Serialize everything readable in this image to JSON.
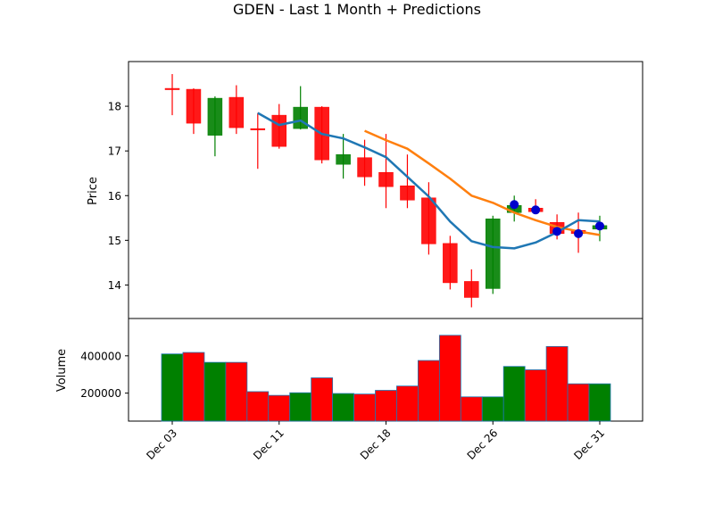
{
  "chart_data": {
    "type": "candlestick",
    "title": "GDEN - Last 1 Month + Predictions",
    "price_ylabel": "Price",
    "volume_ylabel": "Volume",
    "x_ticks": [
      {
        "label": "Dec 03",
        "index": 0
      },
      {
        "label": "Dec 11",
        "index": 5
      },
      {
        "label": "Dec 18",
        "index": 10
      },
      {
        "label": "Dec 26",
        "index": 15
      },
      {
        "label": "Dec 31",
        "index": 20
      }
    ],
    "price_ylim": [
      13.25,
      19.0
    ],
    "price_yticks": [
      "14",
      "15",
      "16",
      "17",
      "18"
    ],
    "volume_ylim": [
      50000,
      600000
    ],
    "volume_yticks": [
      "200000",
      "400000"
    ],
    "colors": {
      "up": "#008000",
      "down": "#ff0000",
      "ma_short": "#1f77b4",
      "ma_long": "#ff7f0e",
      "prediction": "#0000cc"
    },
    "candles": [
      {
        "open": 18.4,
        "high": 18.72,
        "low": 17.8,
        "close": 18.38
      },
      {
        "open": 18.38,
        "high": 18.4,
        "low": 17.38,
        "close": 17.62
      },
      {
        "open": 17.35,
        "high": 18.22,
        "low": 16.88,
        "close": 18.18
      },
      {
        "open": 18.2,
        "high": 18.47,
        "low": 17.38,
        "close": 17.52
      },
      {
        "open": 17.5,
        "high": 17.85,
        "low": 16.6,
        "close": 17.48
      },
      {
        "open": 17.8,
        "high": 18.05,
        "low": 17.05,
        "close": 17.1
      },
      {
        "open": 17.5,
        "high": 18.45,
        "low": 17.48,
        "close": 17.98
      },
      {
        "open": 17.98,
        "high": 18.0,
        "low": 16.72,
        "close": 16.8
      },
      {
        "open": 16.7,
        "high": 17.38,
        "low": 16.38,
        "close": 16.92
      },
      {
        "open": 16.85,
        "high": 17.25,
        "low": 16.22,
        "close": 16.42
      },
      {
        "open": 16.52,
        "high": 17.38,
        "low": 15.72,
        "close": 16.2
      },
      {
        "open": 16.22,
        "high": 16.92,
        "low": 15.72,
        "close": 15.9
      },
      {
        "open": 15.95,
        "high": 16.3,
        "low": 14.68,
        "close": 14.92
      },
      {
        "open": 14.93,
        "high": 15.1,
        "low": 13.9,
        "close": 14.05
      },
      {
        "open": 14.08,
        "high": 14.35,
        "low": 13.5,
        "close": 13.72
      },
      {
        "open": 13.92,
        "high": 15.55,
        "low": 13.8,
        "close": 15.48
      },
      {
        "open": 15.62,
        "high": 16.0,
        "low": 15.42,
        "close": 15.78
      },
      {
        "open": 15.72,
        "high": 15.92,
        "low": 15.62,
        "close": 15.64
      },
      {
        "open": 15.4,
        "high": 15.58,
        "low": 15.02,
        "close": 15.15
      },
      {
        "open": 15.22,
        "high": 15.62,
        "low": 14.72,
        "close": 15.15
      },
      {
        "open": 15.25,
        "high": 15.55,
        "low": 14.98,
        "close": 15.33
      }
    ],
    "ma_short": {
      "start_index": 4,
      "values": [
        17.85,
        17.58,
        17.68,
        17.38,
        17.28,
        17.08,
        16.86,
        16.42,
        15.98,
        15.42,
        14.98,
        14.85,
        14.82,
        14.95,
        15.18,
        15.45,
        15.42
      ]
    },
    "ma_long": {
      "start_index": 9,
      "values": [
        17.45,
        17.24,
        17.05,
        16.72,
        16.38,
        16.0,
        15.84,
        15.62,
        15.45,
        15.3,
        15.2,
        15.12
      ]
    },
    "predictions": {
      "start_index": 16,
      "values": [
        15.8,
        15.68,
        15.2,
        15.15,
        15.32
      ]
    },
    "volume": [
      {
        "value": 410000,
        "dir": "up"
      },
      {
        "value": 418000,
        "dir": "down"
      },
      {
        "value": 365000,
        "dir": "up"
      },
      {
        "value": 365000,
        "dir": "down"
      },
      {
        "value": 208000,
        "dir": "down"
      },
      {
        "value": 188000,
        "dir": "down"
      },
      {
        "value": 202000,
        "dir": "up"
      },
      {
        "value": 282000,
        "dir": "down"
      },
      {
        "value": 198000,
        "dir": "up"
      },
      {
        "value": 195000,
        "dir": "down"
      },
      {
        "value": 215000,
        "dir": "down"
      },
      {
        "value": 238000,
        "dir": "down"
      },
      {
        "value": 375000,
        "dir": "down"
      },
      {
        "value": 510000,
        "dir": "down"
      },
      {
        "value": 180000,
        "dir": "down"
      },
      {
        "value": 180000,
        "dir": "up"
      },
      {
        "value": 343000,
        "dir": "up"
      },
      {
        "value": 325000,
        "dir": "down"
      },
      {
        "value": 450000,
        "dir": "down"
      },
      {
        "value": 250000,
        "dir": "down"
      },
      {
        "value": 250000,
        "dir": "up"
      }
    ]
  }
}
